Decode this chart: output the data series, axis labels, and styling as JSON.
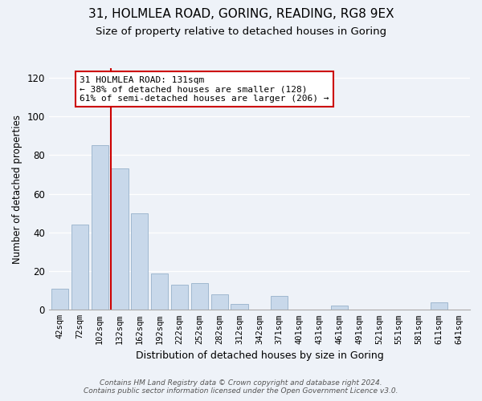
{
  "title": "31, HOLMLEA ROAD, GORING, READING, RG8 9EX",
  "subtitle": "Size of property relative to detached houses in Goring",
  "xlabel": "Distribution of detached houses by size in Goring",
  "ylabel": "Number of detached properties",
  "bar_labels": [
    "42sqm",
    "72sqm",
    "102sqm",
    "132sqm",
    "162sqm",
    "192sqm",
    "222sqm",
    "252sqm",
    "282sqm",
    "312sqm",
    "342sqm",
    "371sqm",
    "401sqm",
    "431sqm",
    "461sqm",
    "491sqm",
    "521sqm",
    "551sqm",
    "581sqm",
    "611sqm",
    "641sqm"
  ],
  "bar_values": [
    11,
    44,
    85,
    73,
    50,
    19,
    13,
    14,
    8,
    3,
    0,
    7,
    0,
    0,
    2,
    0,
    0,
    0,
    0,
    4,
    0
  ],
  "bar_color": "#c8d8ea",
  "bar_edge_color": "#a0b8d0",
  "property_line_color": "#cc0000",
  "ylim": [
    0,
    125
  ],
  "yticks": [
    0,
    20,
    40,
    60,
    80,
    100,
    120
  ],
  "annotation_title": "31 HOLMLEA ROAD: 131sqm",
  "annotation_line1": "← 38% of detached houses are smaller (128)",
  "annotation_line2": "61% of semi-detached houses are larger (206) →",
  "annotation_box_color": "#ffffff",
  "annotation_box_edge_color": "#cc0000",
  "footer_line1": "Contains HM Land Registry data © Crown copyright and database right 2024.",
  "footer_line2": "Contains public sector information licensed under the Open Government Licence v3.0.",
  "background_color": "#eef2f8",
  "title_fontsize": 11,
  "subtitle_fontsize": 9.5
}
